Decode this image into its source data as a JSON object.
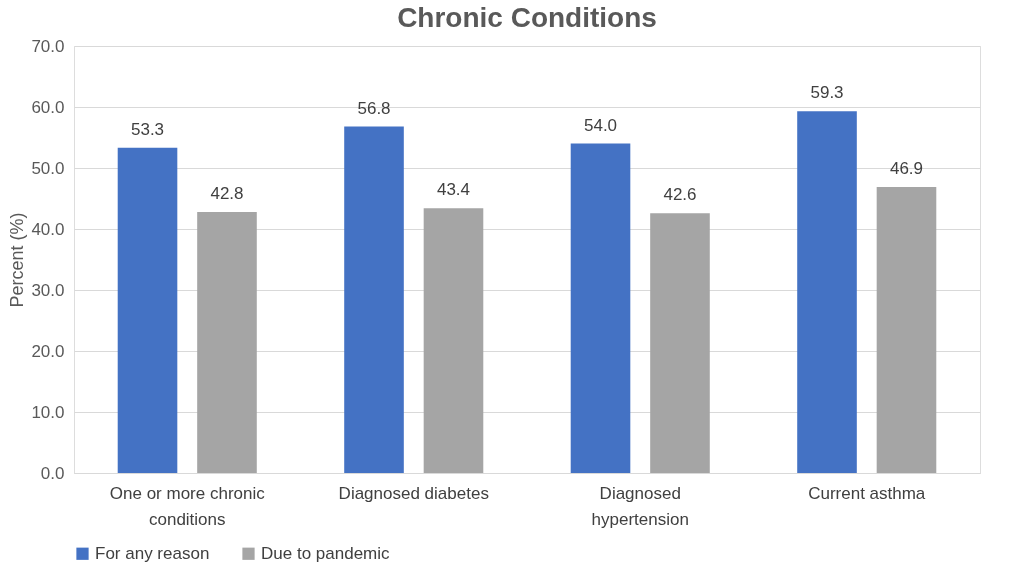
{
  "chart_data": {
    "type": "bar",
    "title": "Chronic Conditions",
    "ylabel": "Percent (%)",
    "categories": [
      "One or more chronic conditions",
      "Diagnosed diabetes",
      "Diagnosed hypertension",
      "Current asthma"
    ],
    "series": [
      {
        "name": "For any reason",
        "color": "#4472c4",
        "values": [
          53.3,
          56.8,
          54.0,
          59.3
        ],
        "value_labels": [
          "53.3",
          "56.8",
          "54.0",
          "59.3"
        ]
      },
      {
        "name": "Due to pandemic",
        "color": "#a5a5a5",
        "values": [
          42.8,
          43.4,
          42.6,
          46.9
        ],
        "value_labels": [
          "42.8",
          "43.4",
          "42.6",
          "46.9"
        ]
      }
    ],
    "ylim": [
      0,
      70
    ],
    "yticks": [
      {
        "value": 0,
        "label": "0.0"
      },
      {
        "value": 10,
        "label": "10.0"
      },
      {
        "value": 20,
        "label": "20.0"
      },
      {
        "value": 30,
        "label": "30.0"
      },
      {
        "value": 40,
        "label": "40.0"
      },
      {
        "value": 50,
        "label": "50.0"
      },
      {
        "value": 60,
        "label": "60.0"
      },
      {
        "value": 70,
        "label": "70.0"
      }
    ],
    "grid": "y",
    "legend": "bottom"
  }
}
